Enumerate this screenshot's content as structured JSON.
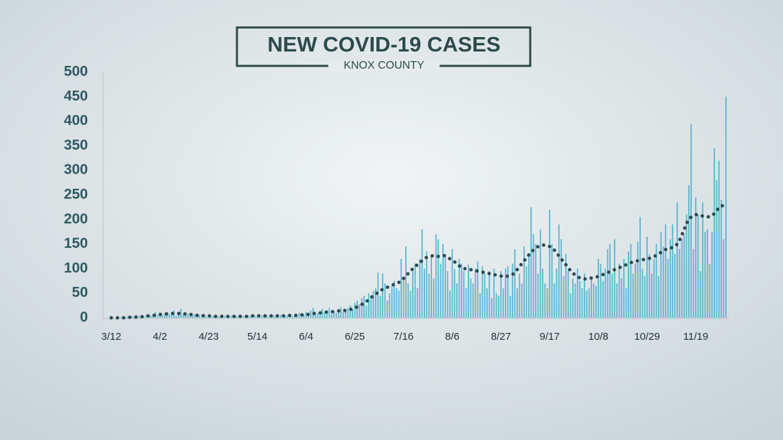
{
  "chart_data": {
    "type": "bar",
    "title": "NEW COVID-19 CASES",
    "subtitle": "KNOX COUNTY",
    "categories": [
      "3/12",
      null,
      null,
      null,
      null,
      null,
      null,
      null,
      null,
      null,
      null,
      null,
      null,
      null,
      null,
      null,
      null,
      null,
      null,
      null,
      null,
      "4/2",
      null,
      null,
      null,
      null,
      null,
      null,
      null,
      null,
      null,
      null,
      null,
      null,
      null,
      null,
      null,
      null,
      null,
      null,
      null,
      null,
      "4/23",
      null,
      null,
      null,
      null,
      null,
      null,
      null,
      null,
      null,
      null,
      null,
      null,
      null,
      null,
      null,
      null,
      null,
      null,
      null,
      null,
      "5/14",
      null,
      null,
      null,
      null,
      null,
      null,
      null,
      null,
      null,
      null,
      null,
      null,
      null,
      null,
      null,
      null,
      null,
      null,
      null,
      null,
      "6/4",
      null,
      null,
      null,
      null,
      null,
      null,
      null,
      null,
      null,
      null,
      null,
      null,
      null,
      null,
      null,
      null,
      null,
      null,
      null,
      null,
      "6/25",
      null,
      null,
      null,
      null,
      null,
      null,
      null,
      null,
      null,
      null,
      null,
      null,
      null,
      null,
      null,
      null,
      null,
      null,
      null,
      null,
      "7/16",
      null,
      null,
      null,
      null,
      null,
      null,
      null,
      null,
      null,
      null,
      null,
      null,
      null,
      null,
      null,
      null,
      null,
      null,
      null,
      null,
      "8/6",
      null,
      null,
      null,
      null,
      null,
      null,
      null,
      null,
      null,
      null,
      null,
      null,
      null,
      null,
      null,
      null,
      null,
      null,
      null,
      null,
      "8/27",
      null,
      null,
      null,
      null,
      null,
      null,
      null,
      null,
      null,
      null,
      null,
      null,
      null,
      null,
      null,
      null,
      null,
      null,
      null,
      null,
      "9/17",
      null,
      null,
      null,
      null,
      null,
      null,
      null,
      null,
      null,
      null,
      null,
      null,
      null,
      null,
      null,
      null,
      null,
      null,
      null,
      null,
      "10/8",
      null,
      null,
      null,
      null,
      null,
      null,
      null,
      null,
      null,
      null,
      null,
      null,
      null,
      null,
      null,
      null,
      null,
      null,
      null,
      null,
      "10/29",
      null,
      null,
      null,
      null,
      null,
      null,
      null,
      null,
      null,
      null,
      null,
      null,
      null,
      null,
      null,
      null,
      null,
      null,
      null,
      null,
      "11/19",
      null,
      null,
      null,
      null,
      null,
      null,
      null,
      null,
      null,
      null,
      null,
      null,
      null
    ],
    "series": [
      {
        "type": "bar",
        "color": "#5ab4d0",
        "values": [
          0,
          0,
          0,
          0,
          1,
          0,
          1,
          2,
          1,
          3,
          2,
          5,
          3,
          4,
          2,
          6,
          5,
          4,
          8,
          12,
          6,
          10,
          5,
          8,
          12,
          7,
          6,
          15,
          4,
          9,
          18,
          6,
          5,
          8,
          10,
          4,
          7,
          3,
          5,
          6,
          3,
          4,
          3,
          2,
          4,
          5,
          3,
          2,
          6,
          4,
          3,
          2,
          5,
          4,
          3,
          6,
          2,
          3,
          4,
          5,
          3,
          2,
          4,
          3,
          4,
          5,
          2,
          6,
          3,
          4,
          5,
          3,
          2,
          6,
          4,
          3,
          5,
          8,
          4,
          6,
          3,
          10,
          5,
          7,
          12,
          8,
          15,
          20,
          6,
          10,
          9,
          18,
          12,
          14,
          20,
          8,
          15,
          10,
          18,
          22,
          12,
          15,
          20,
          25,
          18,
          30,
          35,
          28,
          40,
          45,
          25,
          50,
          38,
          55,
          60,
          92,
          45,
          90,
          70,
          35,
          50,
          65,
          75,
          60,
          55,
          120,
          80,
          145,
          70,
          55,
          95,
          110,
          60,
          120,
          180,
          100,
          135,
          90,
          125,
          80,
          170,
          160,
          110,
          150,
          130,
          95,
          55,
          140,
          100,
          70,
          120,
          110,
          95,
          60,
          108,
          80,
          70,
          100,
          115,
          50,
          105,
          90,
          60,
          95,
          40,
          100,
          50,
          45,
          95,
          60,
          100,
          105,
          45,
          110,
          140,
          60,
          90,
          70,
          145,
          105,
          130,
          225,
          170,
          150,
          90,
          180,
          100,
          70,
          60,
          220,
          150,
          70,
          100,
          190,
          160,
          85,
          130,
          95,
          50,
          80,
          70,
          100,
          75,
          60,
          90,
          55,
          60,
          80,
          70,
          65,
          120,
          110,
          75,
          100,
          140,
          150,
          90,
          160,
          70,
          110,
          80,
          120,
          60,
          135,
          150,
          90,
          110,
          155,
          205,
          100,
          85,
          165,
          130,
          90,
          120,
          150,
          85,
          175,
          145,
          190,
          120,
          160,
          190,
          130,
          235,
          140,
          160,
          170,
          210,
          270,
          395,
          140,
          245,
          210,
          95,
          235,
          175,
          180,
          110,
          175,
          345,
          280,
          320,
          240,
          160,
          450
        ]
      },
      {
        "type": "line",
        "color": "#2b4a50",
        "values": [
          0,
          0,
          0,
          0,
          0,
          0,
          0,
          1,
          1,
          1,
          1,
          2,
          2,
          2,
          3,
          3,
          4,
          4,
          5,
          5,
          6,
          7,
          7,
          8,
          8,
          8,
          9,
          9,
          9,
          9,
          8,
          8,
          8,
          7,
          7,
          6,
          6,
          5,
          5,
          5,
          4,
          4,
          4,
          4,
          4,
          3,
          3,
          3,
          3,
          3,
          3,
          3,
          3,
          3,
          3,
          3,
          3,
          3,
          3,
          3,
          3,
          4,
          4,
          4,
          4,
          4,
          4,
          4,
          4,
          4,
          4,
          4,
          4,
          4,
          4,
          4,
          4,
          5,
          5,
          5,
          5,
          6,
          6,
          6,
          7,
          7,
          8,
          9,
          9,
          10,
          10,
          11,
          11,
          12,
          12,
          12,
          13,
          13,
          14,
          14,
          15,
          15,
          16,
          17,
          18,
          20,
          22,
          24,
          27,
          30,
          33,
          37,
          41,
          45,
          48,
          52,
          55,
          58,
          60,
          62,
          64,
          66,
          68,
          70,
          72,
          75,
          80,
          85,
          90,
          95,
          100,
          105,
          108,
          112,
          116,
          120,
          123,
          125,
          126,
          126,
          125,
          125,
          126,
          127,
          126,
          124,
          120,
          117,
          114,
          110,
          106,
          102,
          100,
          100,
          99,
          98,
          97,
          96,
          95,
          94,
          93,
          92,
          91,
          90,
          89,
          88,
          87,
          86,
          85,
          84,
          84,
          85,
          86,
          88,
          92,
          98,
          104,
          110,
          116,
          122,
          128,
          133,
          138,
          142,
          145,
          147,
          148,
          148,
          146,
          145,
          142,
          138,
          132,
          126,
          120,
          114,
          108,
          102,
          96,
          91,
          87,
          84,
          81,
          80,
          79,
          79,
          80,
          81,
          82,
          83,
          84,
          86,
          88,
          90,
          92,
          94,
          96,
          98,
          100,
          102,
          104,
          106,
          108,
          110,
          112,
          114,
          115,
          116,
          117,
          118,
          119,
          120,
          121,
          123,
          125,
          127,
          130,
          133,
          136,
          139,
          141,
          142,
          143,
          145,
          150,
          158,
          168,
          180,
          192,
          200,
          205,
          208,
          210,
          209,
          208,
          207,
          206,
          205,
          206,
          208,
          212,
          218,
          224,
          228,
          228,
          220
        ]
      }
    ],
    "ylim": [
      0,
      500
    ],
    "yticks": [
      0,
      50,
      100,
      150,
      200,
      250,
      300,
      350,
      400,
      450,
      500
    ]
  }
}
